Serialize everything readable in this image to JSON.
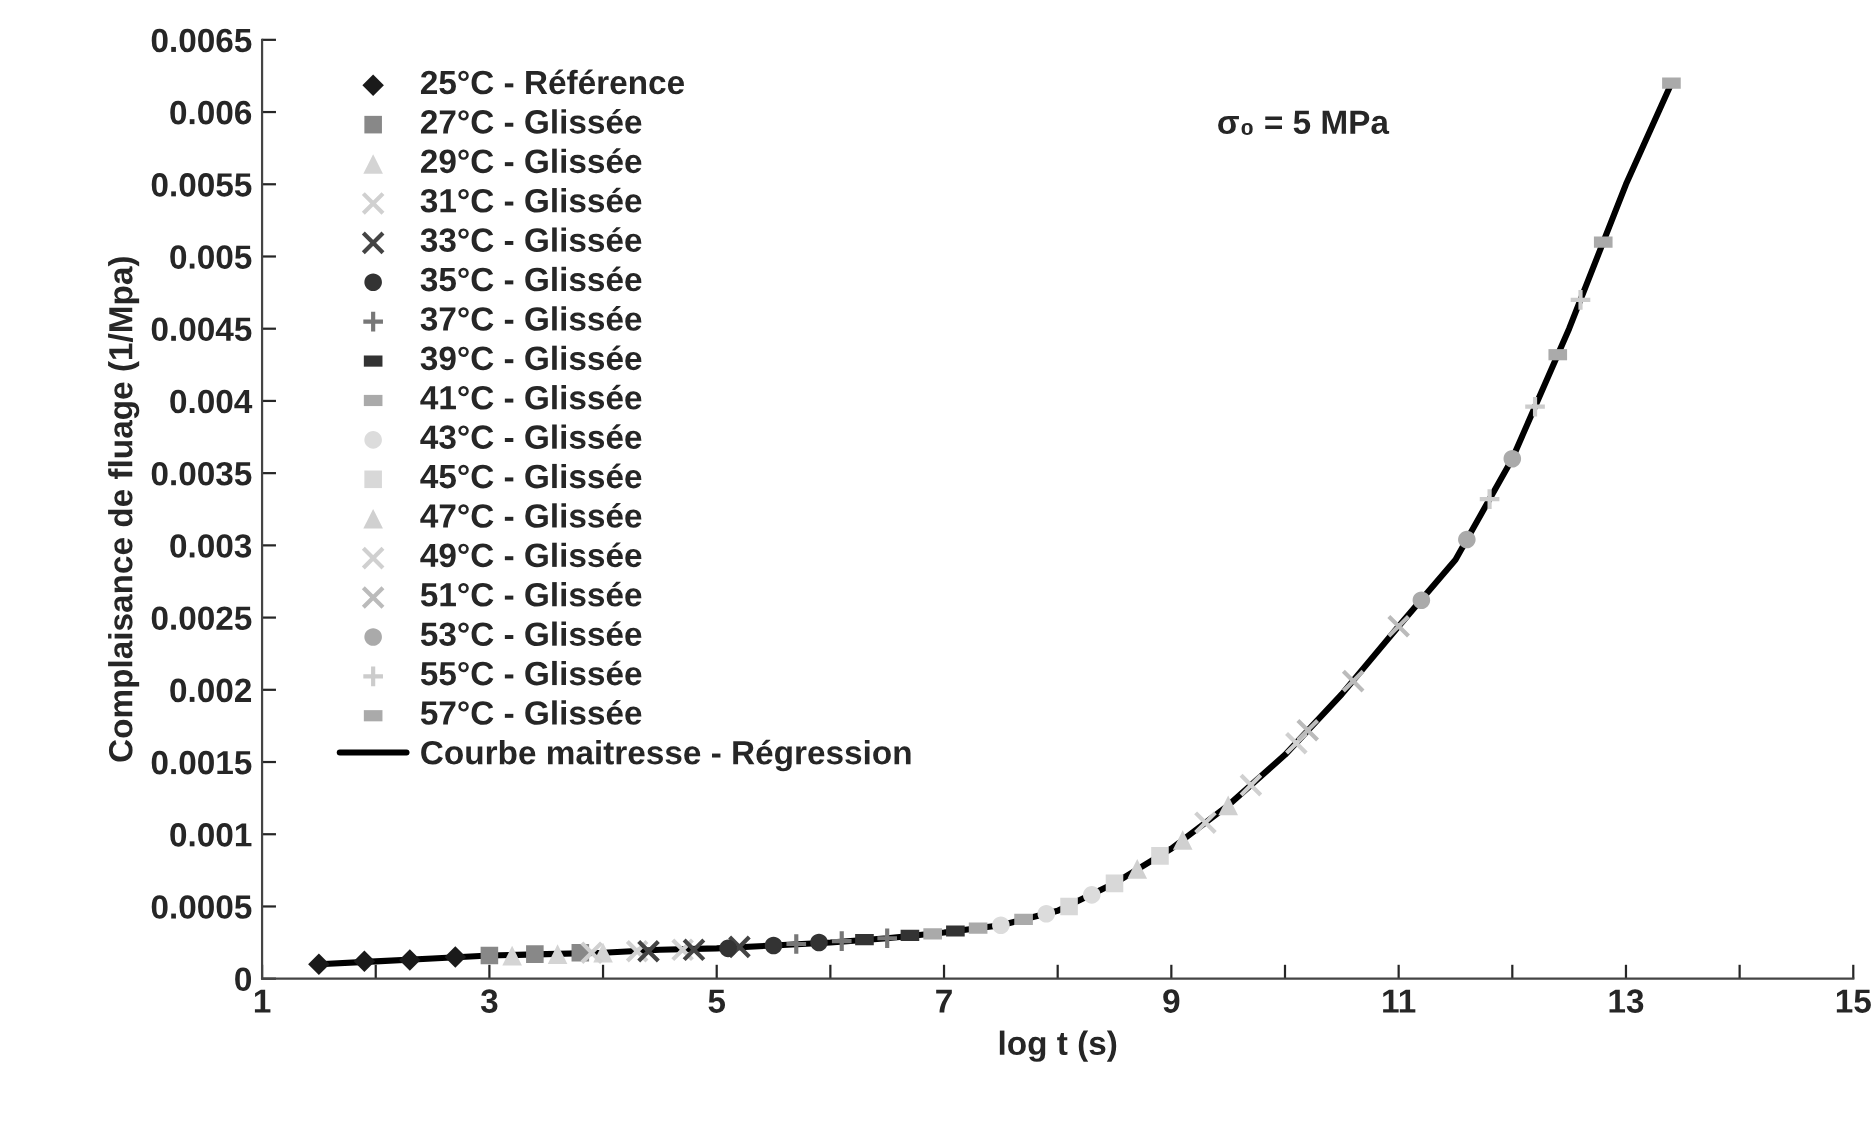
{
  "chart_data": {
    "type": "scatter",
    "xlabel": "log t (s)",
    "ylabel": "Complaisance de fluage (1/Mpa)",
    "annotations": [
      "σ₀ = 5 MPa"
    ],
    "xlim": [
      1,
      15
    ],
    "ylim": [
      0,
      0.0065
    ],
    "xticks": [
      1,
      {
        "value": 2,
        "label": null
      },
      3,
      {
        "value": 4,
        "label": null
      },
      5,
      {
        "value": 6,
        "label": null
      },
      7,
      {
        "value": 8,
        "label": null
      },
      9,
      {
        "value": 10,
        "label": null
      },
      11,
      {
        "value": 12,
        "label": null
      },
      13,
      {
        "value": 14,
        "label": null
      },
      15
    ],
    "yticks": [
      0,
      0.0005,
      0.001,
      0.0015,
      0.002,
      0.0025,
      0.003,
      0.0035,
      0.004,
      0.0045,
      0.005,
      0.0055,
      0.006,
      0.0065
    ],
    "grid": false,
    "legend": "top left",
    "series": [
      {
        "name": "25°C - Référence",
        "color": "#1a1a1a",
        "marker": "diamond",
        "x": [
          1.5,
          1.9,
          2.3,
          2.7
        ],
        "values": [
          0.0001,
          0.00012,
          0.00013,
          0.00015
        ]
      },
      {
        "name": "27°C - Glissée",
        "color": "#888888",
        "marker": "square",
        "x": [
          3.0,
          3.4,
          3.8
        ],
        "values": [
          0.00016,
          0.00017,
          0.00018
        ]
      },
      {
        "name": "29°C - Glissée",
        "color": "#d4d4d4",
        "marker": "triangle",
        "x": [
          3.2,
          3.6,
          4.0
        ],
        "values": [
          0.00016,
          0.00017,
          0.00018
        ]
      },
      {
        "name": "31°C - Glissée",
        "color": "#d0d0d0",
        "marker": "cross",
        "x": [
          3.9,
          4.3,
          4.7
        ],
        "values": [
          0.00018,
          0.00019,
          0.0002
        ]
      },
      {
        "name": "33°C - Glissée",
        "color": "#444444",
        "marker": "cross",
        "x": [
          4.4,
          4.8,
          5.2
        ],
        "values": [
          0.00019,
          0.0002,
          0.00022
        ]
      },
      {
        "name": "35°C - Glissée",
        "color": "#333333",
        "marker": "circle",
        "x": [
          5.1,
          5.5,
          5.9
        ],
        "values": [
          0.00021,
          0.00023,
          0.00025
        ]
      },
      {
        "name": "37°C - Glissée",
        "color": "#777777",
        "marker": "plus",
        "x": [
          5.7,
          6.1,
          6.5
        ],
        "values": [
          0.00024,
          0.00026,
          0.00028
        ]
      },
      {
        "name": "39°C - Glissée",
        "color": "#333333",
        "x": [
          6.3,
          6.7,
          7.1
        ],
        "values": [
          0.00027,
          0.0003,
          0.00033
        ]
      },
      {
        "name": "41°C - Glissée",
        "color": "#aaaaaa",
        "x": [
          6.9,
          7.3,
          7.7
        ],
        "values": [
          0.00031,
          0.00035,
          0.00041
        ]
      },
      {
        "name": "43°C - Glissée",
        "color": "#dcdcdc",
        "marker": "circle",
        "x": [
          7.5,
          7.9,
          8.3
        ],
        "values": [
          0.00037,
          0.00045,
          0.00058
        ]
      },
      {
        "name": "45°C - Glissée",
        "color": "#d8d8d8",
        "marker": "square",
        "x": [
          8.1,
          8.5,
          8.9
        ],
        "values": [
          0.0005,
          0.00066,
          0.00085
        ]
      },
      {
        "name": "47°C - Glissée",
        "color": "#d0d0d0",
        "marker": "triangle",
        "x": [
          8.7,
          9.1,
          9.5
        ],
        "values": [
          0.00076,
          0.00096,
          0.0012
        ]
      },
      {
        "name": "49°C - Glissée",
        "color": "#d0d0d0",
        "marker": "cross",
        "x": [
          9.3,
          9.7,
          10.1
        ],
        "values": [
          0.00108,
          0.00134,
          0.00163
        ]
      },
      {
        "name": "51°C - Glissée",
        "color": "#bbbbbb",
        "marker": "cross",
        "x": [
          10.2,
          10.6,
          11.0
        ],
        "values": [
          0.00172,
          0.00206,
          0.00244
        ]
      },
      {
        "name": "53°C - Glissée",
        "color": "#aaaaaa",
        "marker": "circle",
        "x": [
          11.2,
          11.6,
          12.0
        ],
        "values": [
          0.00262,
          0.00304,
          0.0036
        ]
      },
      {
        "name": "55°C - Glissée",
        "color": "#cccccc",
        "marker": "plus",
        "x": [
          11.8,
          12.2,
          12.6
        ],
        "values": [
          0.00332,
          0.00396,
          0.0047
        ]
      },
      {
        "name": "57°C - Glissée",
        "color": "#aaaaaa",
        "x": [
          12.4,
          12.8,
          13.4
        ],
        "values": [
          0.00432,
          0.0051,
          0.0062
        ]
      },
      {
        "name": "Courbe maitresse - Régression",
        "type": "line",
        "color": "#000000",
        "marker": "none",
        "line_style": "solid",
        "x": [
          1.5,
          2,
          2.5,
          3,
          3.5,
          4,
          4.5,
          5,
          5.5,
          6,
          6.5,
          7,
          7.5,
          8,
          8.5,
          9,
          9.5,
          10,
          10.5,
          11,
          11.5,
          12,
          12.5,
          13,
          13.4
        ],
        "values": [
          0.0001,
          0.00012,
          0.00014,
          0.00016,
          0.00017,
          0.00018,
          0.0002,
          0.00021,
          0.00023,
          0.00025,
          0.00028,
          0.00032,
          0.00037,
          0.00047,
          0.00066,
          0.0009,
          0.0012,
          0.00155,
          0.00197,
          0.00244,
          0.0029,
          0.0036,
          0.0045,
          0.0055,
          0.0062
        ]
      }
    ]
  }
}
